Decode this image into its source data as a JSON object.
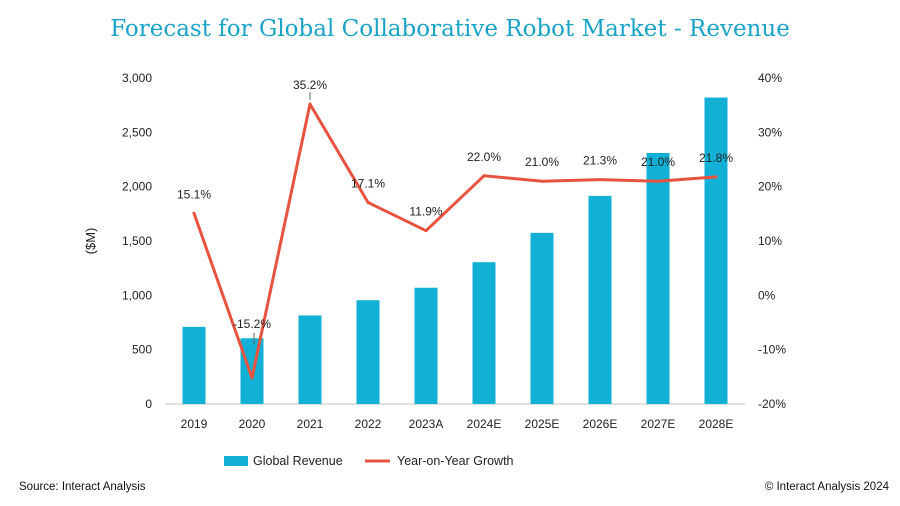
{
  "chart_data": {
    "type": "bar",
    "title": "Forecast for Global Collaborative Robot Market - Revenue",
    "ylabel": "($M)",
    "categories": [
      "2019",
      "2020",
      "2021",
      "2022",
      "2023A",
      "2024E",
      "2025E",
      "2026E",
      "2027E",
      "2028E"
    ],
    "series": [
      {
        "name": "Global Revenue",
        "type": "bar",
        "axis": "left",
        "color": "#12b0d4",
        "values": [
          710,
          605,
          815,
          955,
          1070,
          1305,
          1575,
          1915,
          2310,
          2820
        ]
      },
      {
        "name": "Year-on-Year Growth",
        "type": "line",
        "axis": "right",
        "color": "#e8533f",
        "values": [
          15.1,
          -15.2,
          35.2,
          17.1,
          11.9,
          22.0,
          21.0,
          21.3,
          21.0,
          21.8
        ],
        "labels": [
          "15.1%",
          "-15.2%",
          "35.2%",
          "17.1%",
          "11.9%",
          "22.0%",
          "21.0%",
          "21.3%",
          "21.0%",
          "21.8%"
        ]
      }
    ],
    "ylim": [
      0,
      3000
    ],
    "yticks": [
      "0",
      "500",
      "1,000",
      "1,500",
      "2,000",
      "2,500",
      "3,000"
    ],
    "y2lim": [
      -20,
      40
    ],
    "y2ticks": [
      "-20%",
      "-10%",
      "0%",
      "10%",
      "20%",
      "30%",
      "40%"
    ],
    "legend_position": "bottom",
    "grid": false
  },
  "footer": {
    "source": "Source: Interact Analysis",
    "copyright": "© Interact Analysis 2024"
  }
}
